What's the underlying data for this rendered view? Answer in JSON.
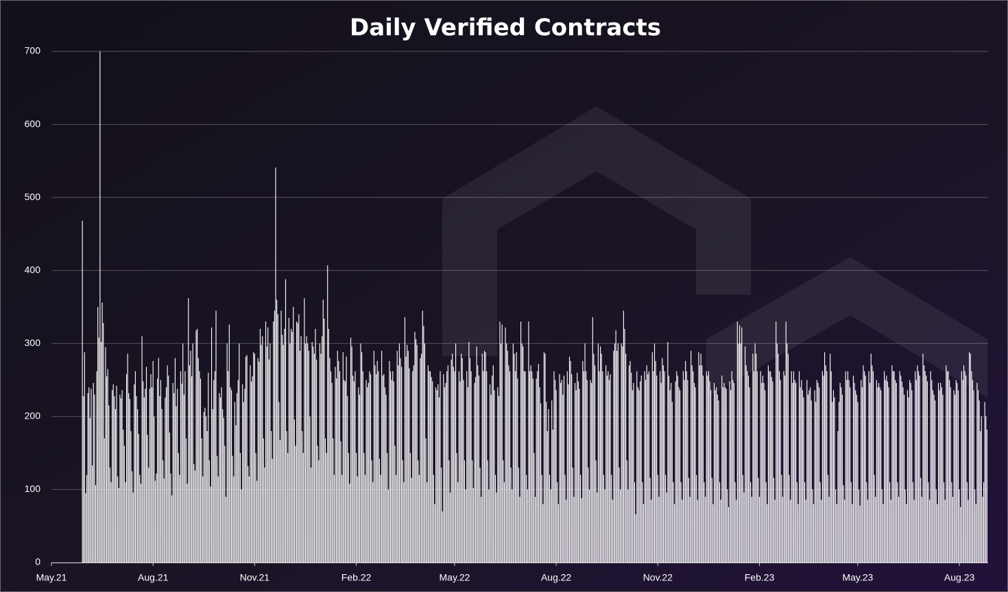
{
  "chart_data": {
    "type": "bar",
    "title": "Daily Verified Contracts",
    "color": "#ffffff",
    "grid": true,
    "xlim": [
      -28,
      820
    ],
    "xticks": [
      {
        "value": -28,
        "label": "May.21"
      },
      {
        "value": 64,
        "label": "Aug.21"
      },
      {
        "value": 156,
        "label": "Nov.21"
      },
      {
        "value": 248,
        "label": "Feb.22"
      },
      {
        "value": 337,
        "label": "May.22"
      },
      {
        "value": 429,
        "label": "Aug.22"
      },
      {
        "value": 521,
        "label": "Nov.22"
      },
      {
        "value": 613,
        "label": "Feb.23"
      },
      {
        "value": 702,
        "label": "May.23"
      },
      {
        "value": 794,
        "label": "Aug.23"
      }
    ],
    "ylim": [
      0,
      700
    ],
    "yticks": [
      0,
      100,
      200,
      300,
      400,
      500,
      600,
      700
    ],
    "values": [
      468,
      228,
      288,
      95,
      120,
      232,
      240,
      198,
      238,
      133,
      246,
      230,
      106,
      262,
      350,
      308,
      700,
      302,
      356,
      328,
      170,
      295,
      255,
      265,
      215,
      130,
      110,
      236,
      244,
      228,
      210,
      242,
      118,
      102,
      230,
      225,
      236,
      182,
      160,
      110,
      258,
      286,
      232,
      224,
      180,
      125,
      96,
      244,
      262,
      228,
      210,
      176,
      120,
      108,
      310,
      248,
      226,
      238,
      268,
      175,
      130,
      238,
      258,
      240,
      276,
      200,
      112,
      122,
      252,
      280,
      228,
      250,
      210,
      140,
      115,
      226,
      240,
      270,
      256,
      178,
      122,
      92,
      246,
      232,
      280,
      214,
      238,
      150,
      120,
      262,
      245,
      300,
      230,
      262,
      170,
      108,
      362,
      270,
      290,
      255,
      300,
      135,
      126,
      318,
      320,
      280,
      262,
      252,
      170,
      118,
      206,
      212,
      200,
      180,
      260,
      140,
      104,
      322,
      210,
      250,
      262,
      345,
      146,
      118,
      232,
      226,
      240,
      210,
      198,
      160,
      90,
      300,
      262,
      326,
      240,
      236,
      146,
      118,
      220,
      188,
      232,
      250,
      300,
      150,
      100,
      244,
      220,
      238,
      282,
      284,
      132,
      118,
      270,
      248,
      255,
      288,
      286,
      150,
      112,
      280,
      275,
      320,
      298,
      310,
      170,
      130,
      330,
      296,
      322,
      278,
      300,
      180,
      142,
      330,
      345,
      541,
      360,
      340,
      220,
      168,
      345,
      312,
      298,
      320,
      388,
      180,
      150,
      335,
      300,
      320,
      316,
      350,
      196,
      160,
      330,
      328,
      340,
      290,
      310,
      180,
      150,
      362,
      300,
      310,
      300,
      290,
      200,
      130,
      302,
      296,
      286,
      320,
      278,
      160,
      140,
      300,
      286,
      310,
      360,
      334,
      170,
      150,
      407,
      320,
      280,
      262,
      246,
      170,
      120,
      268,
      252,
      290,
      276,
      262,
      166,
      120,
      288,
      250,
      248,
      282,
      228,
      150,
      108,
      308,
      296,
      256,
      248,
      262,
      150,
      118,
      240,
      230,
      300,
      288,
      262,
      150,
      120,
      250,
      240,
      246,
      262,
      258,
      140,
      110,
      290,
      270,
      258,
      276,
      262,
      142,
      120,
      290,
      256,
      258,
      240,
      230,
      150,
      100,
      276,
      262,
      250,
      262,
      248,
      160,
      120,
      290,
      270,
      300,
      280,
      268,
      140,
      110,
      336,
      282,
      298,
      290,
      266,
      150,
      116,
      262,
      270,
      316,
      306,
      298,
      140,
      120,
      280,
      286,
      345,
      324,
      300,
      170,
      110,
      270,
      262,
      262,
      254,
      248,
      120,
      80,
      240,
      236,
      244,
      226,
      262,
      130,
      70,
      258,
      240,
      246,
      262,
      270,
      140,
      96,
      278,
      286,
      268,
      262,
      300,
      150,
      110,
      262,
      248,
      286,
      280,
      250,
      140,
      100,
      262,
      240,
      302,
      280,
      262,
      140,
      102,
      246,
      254,
      296,
      270,
      256,
      130,
      90,
      286,
      262,
      290,
      288,
      262,
      140,
      100,
      244,
      230,
      256,
      270,
      236,
      120,
      96,
      240,
      228,
      330,
      300,
      326,
      140,
      110,
      322,
      300,
      290,
      270,
      262,
      130,
      100,
      300,
      286,
      262,
      288,
      252,
      130,
      90,
      330,
      300,
      296,
      262,
      262,
      120,
      100,
      330,
      262,
      270,
      262,
      252,
      150,
      90,
      252,
      262,
      272,
      240,
      218,
      120,
      80,
      288,
      286,
      220,
      180,
      210,
      120,
      100,
      222,
      182,
      262,
      250,
      236,
      110,
      80,
      258,
      246,
      250,
      230,
      256,
      120,
      86,
      262,
      244,
      282,
      276,
      258,
      130,
      90,
      246,
      236,
      260,
      248,
      238,
      120,
      88,
      276,
      262,
      300,
      262,
      250,
      130,
      100,
      250,
      246,
      336,
      286,
      270,
      140,
      96,
      300,
      262,
      296,
      286,
      262,
      120,
      100,
      270,
      256,
      262,
      250,
      258,
      120,
      86,
      290,
      300,
      318,
      290,
      300,
      130,
      100,
      300,
      296,
      345,
      320,
      286,
      140,
      100,
      270,
      276,
      260,
      236,
      246,
      110,
      66,
      262,
      240,
      236,
      248,
      256,
      110,
      80,
      262,
      250,
      270,
      258,
      262,
      116,
      86,
      288,
      262,
      300,
      276,
      256,
      120,
      90,
      262,
      246,
      280,
      270,
      262,
      120,
      96,
      302,
      256,
      236,
      246,
      220,
      110,
      80,
      248,
      262,
      256,
      240,
      236,
      110,
      86,
      262,
      250,
      276,
      262,
      250,
      116,
      90,
      290,
      270,
      262,
      246,
      240,
      120,
      86,
      288,
      270,
      286,
      270,
      256,
      110,
      90,
      262,
      256,
      262,
      248,
      236,
      116,
      80,
      246,
      236,
      240,
      230,
      222,
      110,
      86,
      256,
      240,
      246,
      240,
      238,
      100,
      76,
      248,
      236,
      262,
      250,
      246,
      110,
      86,
      330,
      300,
      325,
      300,
      322,
      120,
      96,
      296,
      270,
      262,
      256,
      240,
      110,
      90,
      286,
      262,
      300,
      286,
      262,
      116,
      90,
      262,
      246,
      256,
      246,
      236,
      110,
      80,
      270,
      262,
      262,
      254,
      248,
      116,
      86,
      330,
      300,
      286,
      262,
      250,
      120,
      90,
      262,
      256,
      330,
      300,
      286,
      120,
      86,
      262,
      246,
      262,
      250,
      246,
      110,
      80,
      262,
      240,
      250,
      236,
      226,
      110,
      86,
      250,
      230,
      236,
      240,
      222,
      100,
      80,
      236,
      220,
      250,
      246,
      240,
      110,
      86,
      262,
      256,
      288,
      270,
      262,
      120,
      90,
      286,
      262,
      220,
      236,
      226,
      100,
      80,
      180,
      220,
      246,
      240,
      230,
      106,
      86,
      262,
      250,
      262,
      250,
      240,
      110,
      80,
      256,
      246,
      236,
      230,
      220,
      100,
      78,
      250,
      240,
      270,
      262,
      256,
      110,
      86,
      262,
      246,
      286,
      270,
      262,
      120,
      90,
      250,
      240,
      246,
      240,
      236,
      100,
      80,
      262,
      250,
      256,
      248,
      240,
      110,
      86,
      270,
      262,
      262,
      250,
      246,
      110,
      90,
      262,
      256,
      248,
      240,
      230,
      100,
      80,
      236,
      226,
      250,
      246,
      236,
      110,
      86,
      262,
      250,
      270,
      262,
      256,
      116,
      90,
      286,
      270,
      262,
      256,
      248,
      110,
      86,
      262,
      250,
      236,
      230,
      222,
      100,
      80,
      246,
      236,
      246,
      240,
      230,
      110,
      86,
      270,
      262,
      262,
      250,
      240,
      110,
      90,
      236,
      230,
      250,
      246,
      236,
      100,
      76,
      262,
      250,
      270,
      262,
      256,
      110,
      86,
      288,
      286,
      262,
      250,
      236,
      100,
      80,
      246,
      236,
      222,
      180,
      200,
      90,
      110,
      220,
      200,
      182
    ]
  }
}
